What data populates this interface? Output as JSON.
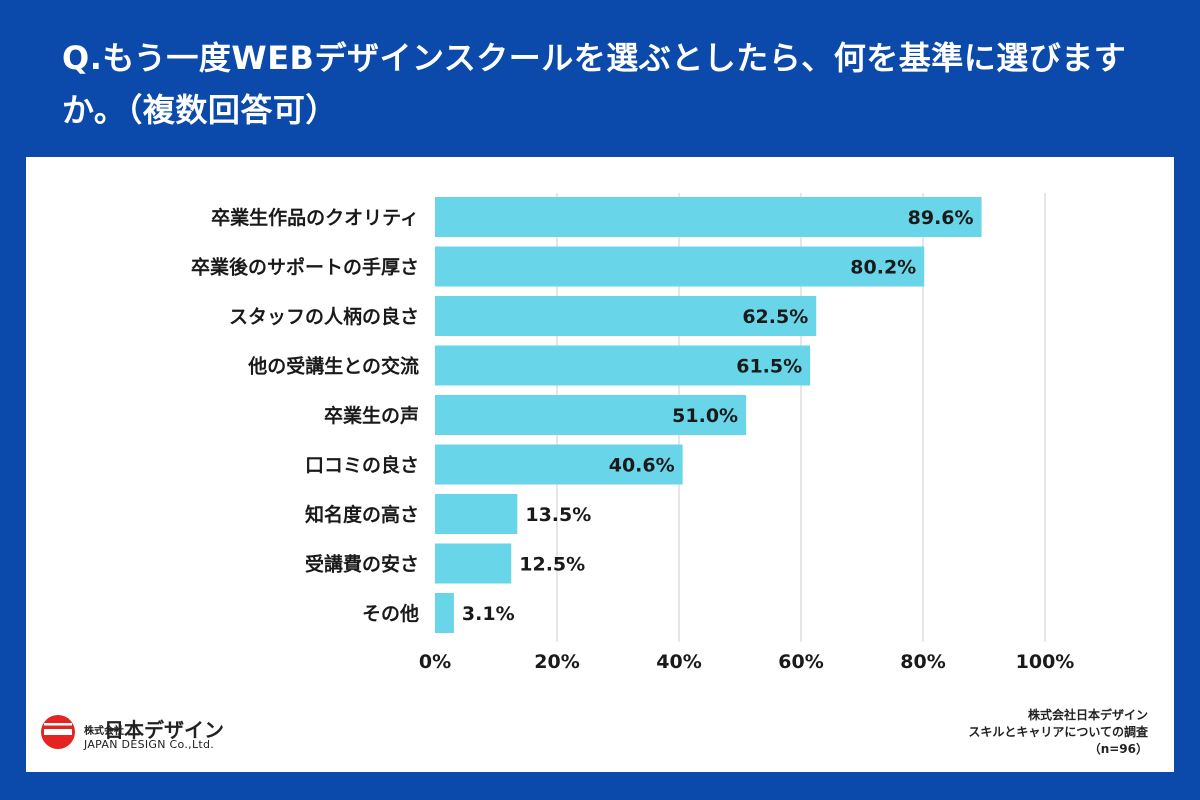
{
  "title": "Q.もう一度WEBデザインスクールを選ぶとしたら、何を基準に選びますか。（複数回答可）",
  "logo": {
    "company_small": "株式会社",
    "company_jp": "日本デザイン",
    "company_en": "JAPAN DESIGN Co.,Ltd.",
    "brand_color": "#e52421"
  },
  "source": {
    "line1": "株式会社日本デザイン",
    "line2": "スキルとキャリアについての調査",
    "line3": "（n=96）"
  },
  "colors": {
    "background": "#0b49ab",
    "bar": "#68d5e8",
    "grid": "#dddddd"
  },
  "chart_data": {
    "type": "bar",
    "orientation": "horizontal",
    "categories": [
      "卒業生作品のクオリティ",
      "卒業後のサポートの手厚さ",
      "スタッフの人柄の良さ",
      "他の受講生との交流",
      "卒業生の声",
      "口コミの良さ",
      "知名度の高さ",
      "受講費の安さ",
      "その他"
    ],
    "values": [
      89.6,
      80.2,
      62.5,
      61.5,
      51.0,
      40.6,
      13.5,
      12.5,
      3.1
    ],
    "value_labels": [
      "89.6%",
      "80.2%",
      "62.5%",
      "61.5%",
      "51.0%",
      "40.6%",
      "13.5%",
      "12.5%",
      "3.1%"
    ],
    "xlim": [
      0,
      100
    ],
    "xticks": [
      "0%",
      "20%",
      "40%",
      "60%",
      "80%",
      "100%"
    ],
    "grid": true
  }
}
